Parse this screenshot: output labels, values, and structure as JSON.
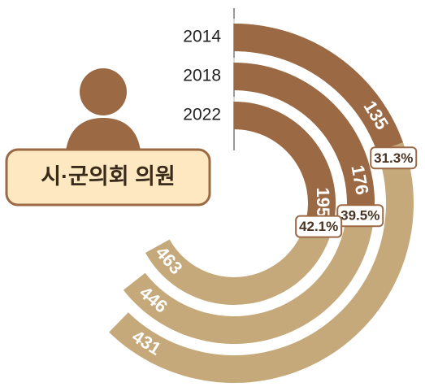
{
  "chart_data": {
    "type": "radial_bar",
    "title": "시·군의회 의원",
    "categories": [
      "2014",
      "2018",
      "2022"
    ],
    "values": [
      135,
      176,
      195
    ],
    "totals": [
      431,
      446,
      463
    ],
    "shares": [
      31.3,
      39.5,
      42.1
    ],
    "share_labels": [
      "31.3%",
      "39.5%",
      "42.1%"
    ],
    "color": "#9b6a45",
    "total_color": "#c5a97b"
  }
}
